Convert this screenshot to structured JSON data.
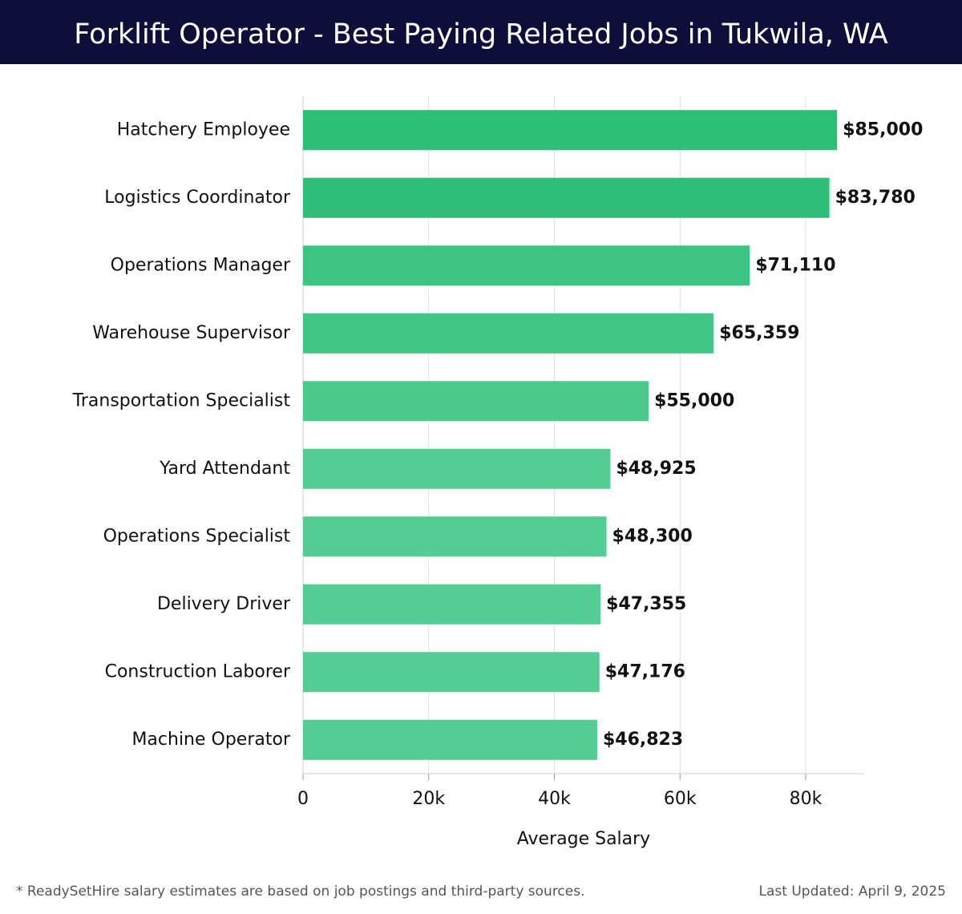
{
  "chart_data": {
    "type": "hbar",
    "title": "Forklift Operator - Best Paying Related Jobs in Tukwila, WA",
    "x_label": "Average Salary",
    "categories": [
      "Hatchery Employee",
      "Logistics Coordinator",
      "Operations Manager",
      "Warehouse Supervisor",
      "Transportation Specialist",
      "Yard Attendant",
      "Operations Specialist",
      "Delivery Driver",
      "Construction Laborer",
      "Machine Operator"
    ],
    "values": [
      85000,
      83780,
      71110,
      65359,
      55000,
      48925,
      48300,
      47355,
      47176,
      46823
    ],
    "value_labels": [
      "$85,000",
      "$83,780",
      "$71,110",
      "$65,359",
      "$55,000",
      "$48,925",
      "$48,300",
      "$47,355",
      "$47,176",
      "$46,823"
    ],
    "colors": [
      "#2dbe78",
      "#2fbf7a",
      "#3dc483",
      "#3fc584",
      "#4cc98c",
      "#55cc93",
      "#55cc93",
      "#55cc93",
      "#55cc93",
      "#55cc93"
    ],
    "xlim": [
      0,
      89250
    ],
    "xticks": [
      0,
      {
        "value": 20000,
        "label": "20k"
      },
      {
        "value": 40000,
        "label": "40k"
      },
      {
        "value": 60000,
        "label": "60k"
      },
      {
        "value": 80000,
        "label": "80k"
      }
    ],
    "grid": true,
    "footnote": "* ReadySetHire salary estimates are based on job postings and third-party sources.",
    "updated": "Last Updated: April 9, 2025"
  }
}
